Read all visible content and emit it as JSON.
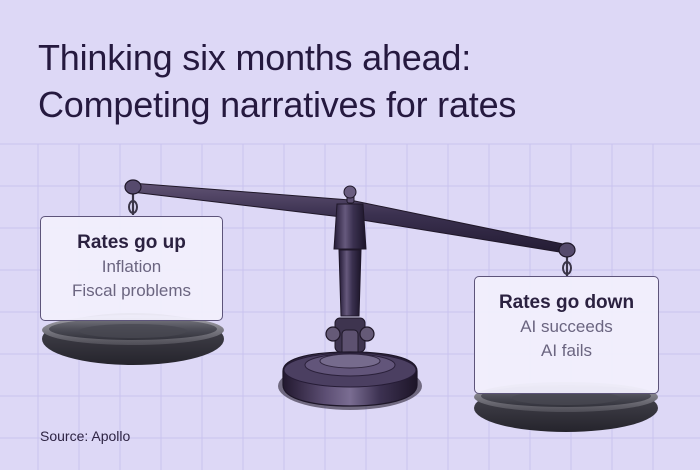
{
  "title": {
    "line1": "Thinking six months ahead:",
    "line2": "Competing narratives for rates"
  },
  "left_pan": {
    "heading": "Rates go up",
    "items": [
      "Inflation",
      "Fiscal problems"
    ]
  },
  "right_pan": {
    "heading": "Rates go down",
    "items": [
      "AI succeeds",
      "AI fails"
    ]
  },
  "source": "Source: Apollo",
  "colors": {
    "background": "#ddd8f6",
    "grid": "#c8c2ee",
    "scale_purple": "#3a2f56",
    "pan_metal": "#4b4b57",
    "title_text": "#25193f"
  },
  "icons": {
    "balance_scale": "balance-scale-icon"
  }
}
